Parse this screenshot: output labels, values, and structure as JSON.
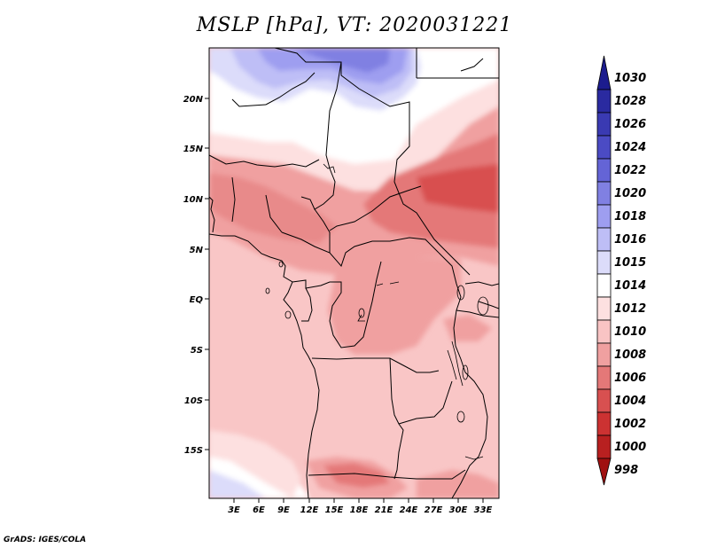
{
  "title": "MSLP [hPa], VT: 2020031221",
  "footer": "GrADS: IGES/COLA",
  "map": {
    "variable": "MSLP",
    "units": "hPa",
    "valid_time": "2020031221",
    "lon_labels": [
      "3E",
      "6E",
      "9E",
      "12E",
      "15E",
      "18E",
      "21E",
      "24E",
      "27E",
      "30E",
      "33E"
    ],
    "lat_labels": [
      "20N",
      "15N",
      "10N",
      "5N",
      "EQ",
      "5S",
      "10S",
      "15S"
    ]
  },
  "legend": {
    "levels": [
      {
        "label": "1030",
        "color": "#1c1c8e"
      },
      {
        "label": "1028",
        "color": "#2a2aa0"
      },
      {
        "label": "1026",
        "color": "#3a3ab2"
      },
      {
        "label": "1024",
        "color": "#4b4bc4"
      },
      {
        "label": "1022",
        "color": "#6464d6"
      },
      {
        "label": "1020",
        "color": "#8080e2"
      },
      {
        "label": "1018",
        "color": "#9e9ef0"
      },
      {
        "label": "1016",
        "color": "#bebef6"
      },
      {
        "label": "1015",
        "color": "#dcdcfa"
      },
      {
        "label": "1014",
        "color": "#ffffff"
      },
      {
        "label": "1012",
        "color": "#fde0e0"
      },
      {
        "label": "1010",
        "color": "#f9c4c4"
      },
      {
        "label": "1008",
        "color": "#f0a0a0"
      },
      {
        "label": "1006",
        "color": "#e47878"
      },
      {
        "label": "1004",
        "color": "#d85050"
      },
      {
        "label": "1002",
        "color": "#cc3232"
      },
      {
        "label": "1000",
        "color": "#b82020"
      },
      {
        "label": "998",
        "color": "#a01010"
      }
    ]
  }
}
